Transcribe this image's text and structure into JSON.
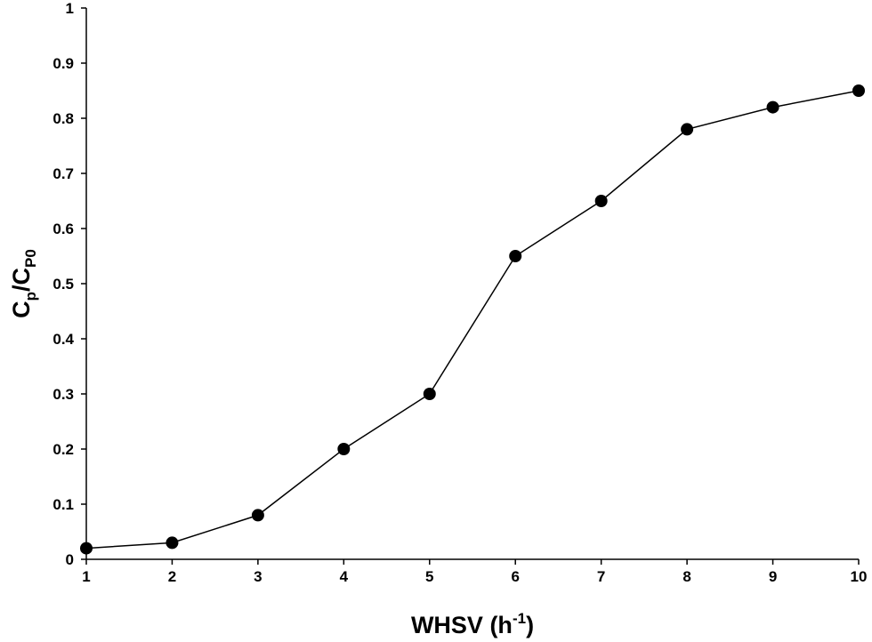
{
  "chart_data": {
    "type": "line",
    "title": "",
    "xlabel": "WHSV (h",
    "xlabel_sup": "-1",
    "xlabel_end": ")",
    "ylabel_parts": [
      "C",
      "p",
      "/C",
      "P0"
    ],
    "x": [
      1,
      2,
      3,
      4,
      5,
      6,
      7,
      8,
      9,
      10
    ],
    "series": [
      {
        "values": [
          0.02,
          0.03,
          0.08,
          0.2,
          0.3,
          0.55,
          0.65,
          0.78,
          0.82,
          0.85
        ]
      }
    ],
    "xlim": [
      1,
      10
    ],
    "ylim": [
      0,
      1
    ],
    "xticks": [
      "1",
      "2",
      "3",
      "4",
      "5",
      "6",
      "7",
      "8",
      "9",
      "10"
    ],
    "yticks": [
      "0",
      "0.1",
      "0.2",
      "0.3",
      "0.4",
      "0.5",
      "0.6",
      "0.7",
      "0.8",
      "0.9",
      "1"
    ],
    "grid": false,
    "legend": "none",
    "marker": "circle-filled",
    "line_color": "#000000",
    "marker_color": "#000000"
  }
}
